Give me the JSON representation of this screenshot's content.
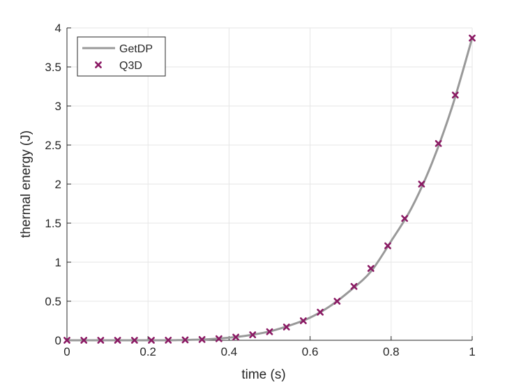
{
  "chart_data": {
    "type": "line",
    "title": "",
    "xlabel": "time (s)",
    "ylabel": "thermal energy (J)",
    "xlim": [
      0,
      1
    ],
    "ylim": [
      0,
      4
    ],
    "xticks": [
      0,
      0.2,
      0.4,
      0.6,
      0.8,
      1
    ],
    "xtick_labels": [
      "0",
      "0.2",
      "0.4",
      "0.6",
      "0.8",
      "1"
    ],
    "yticks": [
      0,
      0.5,
      1,
      1.5,
      2,
      2.5,
      3,
      3.5,
      4
    ],
    "ytick_labels": [
      "0",
      "0.5",
      "1",
      "1.5",
      "2",
      "2.5",
      "3",
      "3.5",
      "4"
    ],
    "grid": true,
    "legend_position": "top-left",
    "colors": {
      "getdp": "#999999",
      "q3d": "#8b1a64",
      "grid": "#e6e6e6",
      "axis": "#262626"
    },
    "series": [
      {
        "name": "GetDP",
        "style": "line",
        "x": [
          0,
          0.05,
          0.1,
          0.15,
          0.2,
          0.25,
          0.3,
          0.35,
          0.4,
          0.45,
          0.5,
          0.55,
          0.6,
          0.65,
          0.7,
          0.75,
          0.8,
          0.85,
          0.9,
          0.95,
          1.0
        ],
        "y": [
          0,
          0.0,
          0.0,
          0.0,
          0.0,
          0.0,
          0.005,
          0.013,
          0.033,
          0.065,
          0.113,
          0.19,
          0.29,
          0.44,
          0.64,
          0.88,
          1.27,
          1.69,
          2.26,
          2.98,
          3.87
        ]
      },
      {
        "name": "Q3D",
        "style": "marker-x",
        "x": [
          0,
          0.0417,
          0.0833,
          0.125,
          0.1667,
          0.2083,
          0.25,
          0.2917,
          0.3333,
          0.375,
          0.4167,
          0.4583,
          0.5,
          0.5417,
          0.5833,
          0.625,
          0.6667,
          0.7083,
          0.75,
          0.7917,
          0.8333,
          0.875,
          0.9167,
          0.9583,
          1.0
        ],
        "y": [
          0,
          0,
          0,
          0,
          0,
          0,
          0.001,
          0.005,
          0.01,
          0.02,
          0.04,
          0.07,
          0.11,
          0.17,
          0.25,
          0.36,
          0.5,
          0.69,
          0.92,
          1.21,
          1.56,
          2.0,
          2.52,
          3.14,
          3.87
        ]
      }
    ]
  }
}
